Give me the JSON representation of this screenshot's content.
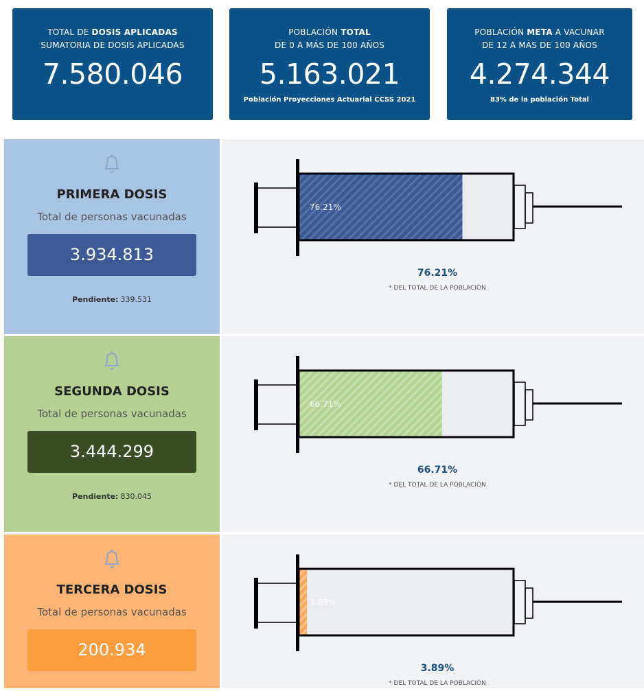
{
  "cards": [
    {
      "pre": "TOTAL DE ",
      "bold": "DOSIS APLICADAS",
      "post": "",
      "line2": "SUMATORIA DE DOSIS APLICADAS",
      "value": "7.580.046"
    },
    {
      "pre": "POBLACIÓN ",
      "bold": "TOTAL",
      "post": "",
      "line2": "DE 0 A MÁS DE 100 AÑOS",
      "value": "5.163.021",
      "note": "Población Proyecciones Actuarial CCSS 2021"
    },
    {
      "pre": "POBLACIÓN ",
      "bold": "META",
      "post": " A VACUNAR",
      "line2": "DE 12 A MÁS DE 100 AÑOS",
      "value": "4.274.344",
      "note": "83% de la población Total"
    }
  ],
  "note": "* DEL TOTAL DE LA POBLACIÓN",
  "doses": [
    {
      "title": "PRIMERA DOSIS",
      "subtitle": "Total de personas vacunadas",
      "value": "3.934.813",
      "pending_label": "Pendiente:",
      "pending": "339.531",
      "percent": 76.21,
      "percent_label": "76.21%",
      "panel_color": "#a9c3e3",
      "box_color": "#3d5a96",
      "fill_color": "#3d5a96",
      "stripe_color": "#5670a8"
    },
    {
      "title": "SEGUNDA DOSIS",
      "subtitle": "Total de personas vacunadas",
      "value": "3.444.299",
      "pending_label": "Pendiente:",
      "pending": "830.045",
      "percent": 66.71,
      "percent_label": "66.71%",
      "panel_color": "#b4d092",
      "box_color": "#3a4d26",
      "fill_color": "#b3d495",
      "stripe_color": "#c6e0ad"
    },
    {
      "title": "TERCERA DOSIS",
      "subtitle": "Total de personas vacunadas",
      "value": "200.934",
      "percent": 3.89,
      "percent_label": "3.89%",
      "panel_color": "#fdb576",
      "box_color": "#fc9d40",
      "fill_color": "#fca959",
      "stripe_color": "#fdc48e"
    }
  ]
}
